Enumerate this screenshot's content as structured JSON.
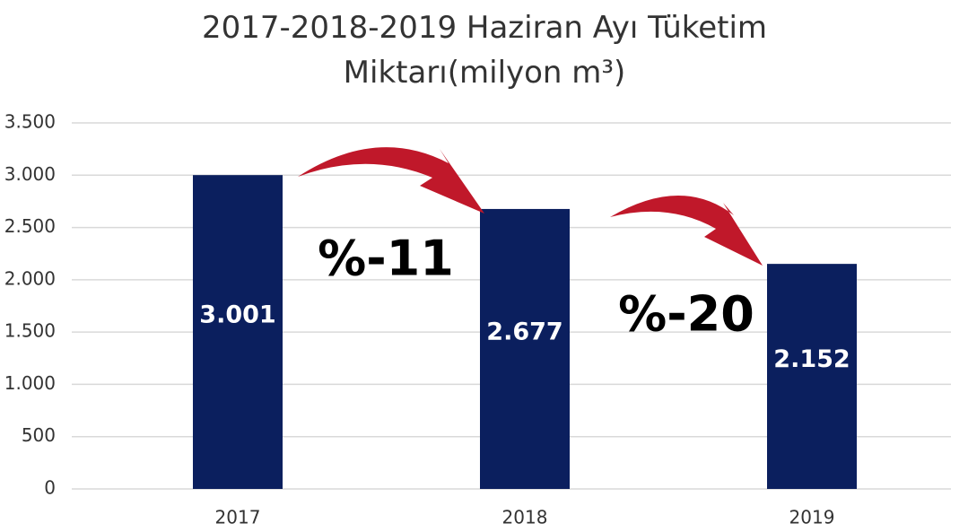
{
  "chart_data": {
    "type": "bar",
    "title": "2017-2018-2019 Haziran Ayı Tüketim Miktarı(milyon m³)",
    "categories": [
      "2017",
      "2018",
      "2019"
    ],
    "values": [
      3001,
      2677,
      2152
    ],
    "value_labels": [
      "3.001",
      "2.677",
      "2.152"
    ],
    "color": "#0b1f5e",
    "ylim": [
      0,
      3500
    ],
    "yticks": [
      0,
      500,
      {
        "value": 1000,
        "label": "1.000"
      },
      {
        "value": 1500,
        "label": "1.500"
      },
      {
        "value": 2000,
        "label": "2.000"
      },
      {
        "value": 2500,
        "label": "2.500"
      },
      {
        "value": 3000,
        "label": "3.000"
      },
      {
        "value": 3500,
        "label": "3.500"
      }
    ],
    "grid": true,
    "annotations": [
      {
        "text": "%-11"
      },
      {
        "text": "%-20"
      }
    ]
  }
}
